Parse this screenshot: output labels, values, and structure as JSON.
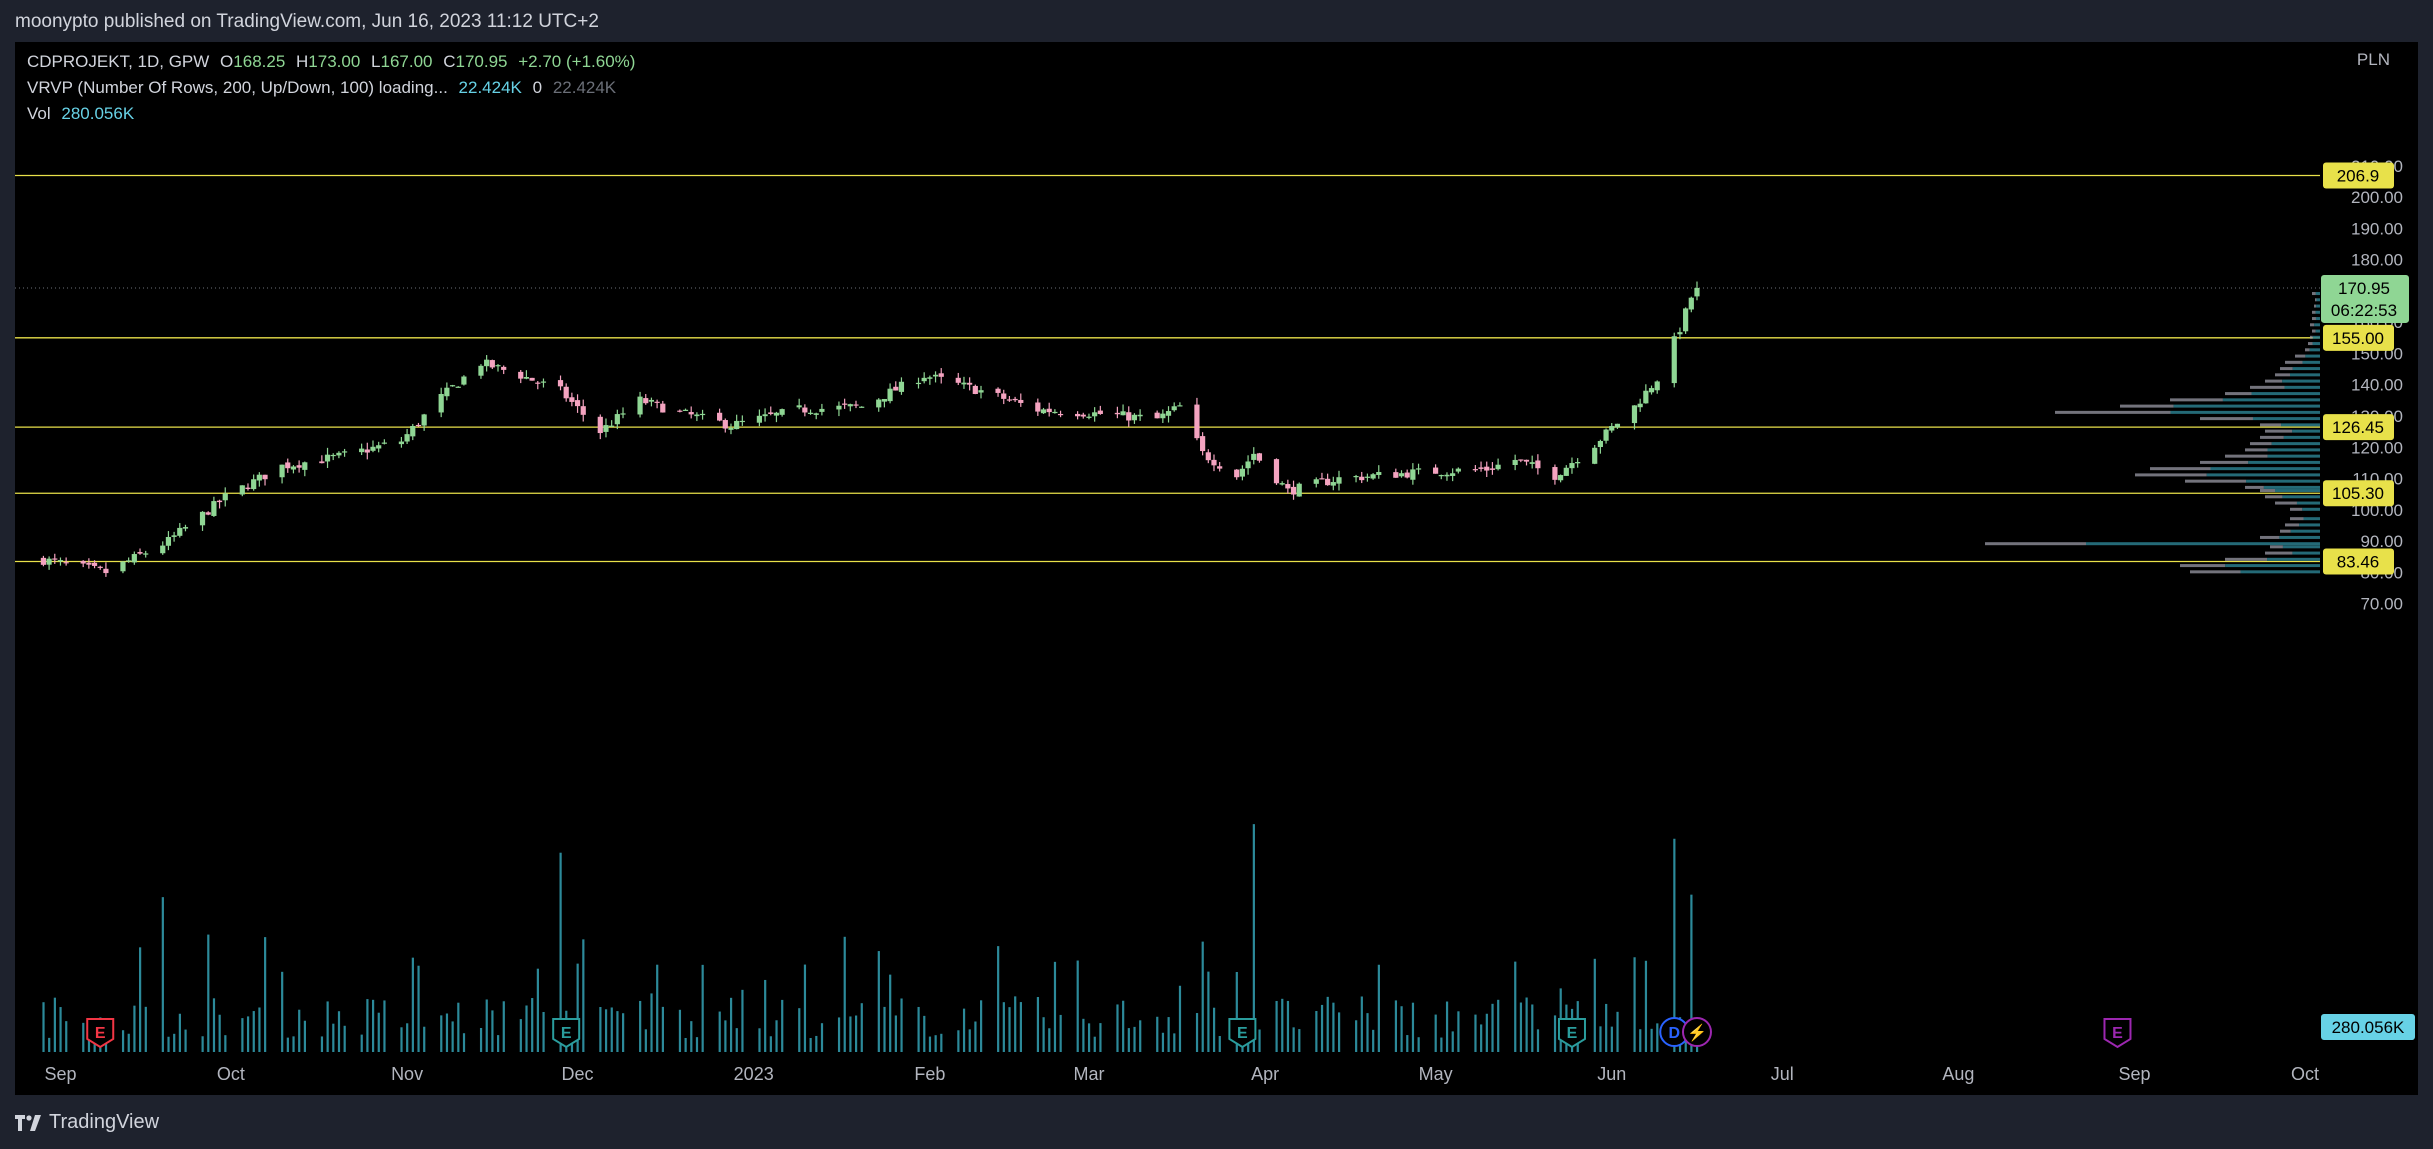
{
  "header": {
    "published_by": "moonypto published on TradingView.com, Jun 16, 2023 11:12 UTC+2"
  },
  "legend": {
    "symbol": "CDPROJEKT, 1D, GPW",
    "open_label": "O",
    "open": "168.25",
    "high_label": "H",
    "high": "173.00",
    "low_label": "L",
    "low": "167.00",
    "close_label": "C",
    "close": "170.95",
    "change": "+2.70 (+1.60%)",
    "vrvp_label": "VRVP (Number Of Rows, 200, Up/Down, 100) loading...",
    "vrvp_up": "22.424K",
    "vrvp_zero": "0",
    "vrvp_down": "22.424K",
    "vol_label": "Vol",
    "vol_value": "280.056K"
  },
  "footer": {
    "brand": "TradingView"
  },
  "colors": {
    "up": "#8fd694",
    "down": "#f4a3c0",
    "level": "#e8e14a",
    "volume": "#2c8a9a",
    "vrvp_up": "#2a7d8c",
    "vrvp_down": "#9a9aa5",
    "background": "#000000",
    "price_badge": "#8fd694",
    "vol_badge": "#67d2e6"
  },
  "chart_data": {
    "type": "candlestick",
    "currency": "PLN",
    "y_axis": {
      "min": 70,
      "max": 210,
      "ticks": [
        70,
        80,
        90,
        100,
        110,
        120,
        130,
        140,
        150,
        160,
        170,
        180,
        190,
        200,
        210
      ]
    },
    "x_axis_labels": [
      "Sep",
      "Oct",
      "Nov",
      "Dec",
      "2023",
      "Feb",
      "Mar",
      "Apr",
      "May",
      "Jun",
      "Jul",
      "Aug",
      "Sep",
      "Oct"
    ],
    "horizontal_levels": [
      206.9,
      155.0,
      126.45,
      105.3,
      83.46
    ],
    "level_labels": [
      "206.9",
      "155.00",
      "126.45",
      "105.30",
      "83.46"
    ],
    "last_price": "170.95",
    "countdown": "06:22:53",
    "price_key_points": [
      {
        "date": "2022-08-29",
        "close": 84
      },
      {
        "date": "2022-09-09",
        "close": 80
      },
      {
        "date": "2022-09-20",
        "close": 90
      },
      {
        "date": "2022-09-30",
        "close": 104
      },
      {
        "date": "2022-10-10",
        "close": 114
      },
      {
        "date": "2022-10-20",
        "close": 117
      },
      {
        "date": "2022-10-31",
        "close": 122
      },
      {
        "date": "2022-11-07",
        "close": 136
      },
      {
        "date": "2022-11-14",
        "close": 147
      },
      {
        "date": "2022-11-21",
        "close": 143
      },
      {
        "date": "2022-11-28",
        "close": 138
      },
      {
        "date": "2022-12-05",
        "close": 125
      },
      {
        "date": "2022-12-12",
        "close": 135
      },
      {
        "date": "2022-12-19",
        "close": 131
      },
      {
        "date": "2022-12-28",
        "close": 127
      },
      {
        "date": "2023-01-09",
        "close": 132
      },
      {
        "date": "2023-01-20",
        "close": 133
      },
      {
        "date": "2023-01-31",
        "close": 143
      },
      {
        "date": "2023-02-10",
        "close": 138
      },
      {
        "date": "2023-02-20",
        "close": 132
      },
      {
        "date": "2023-03-01",
        "close": 131
      },
      {
        "date": "2023-03-13",
        "close": 129
      },
      {
        "date": "2023-03-17",
        "close": 133
      },
      {
        "date": "2023-03-21",
        "close": 118
      },
      {
        "date": "2023-03-27",
        "close": 111
      },
      {
        "date": "2023-03-30",
        "close": 118
      },
      {
        "date": "2023-04-05",
        "close": 106
      },
      {
        "date": "2023-04-14",
        "close": 110
      },
      {
        "date": "2023-04-28",
        "close": 112
      },
      {
        "date": "2023-05-10",
        "close": 113
      },
      {
        "date": "2023-05-15",
        "close": 116
      },
      {
        "date": "2023-05-22",
        "close": 111
      },
      {
        "date": "2023-05-29",
        "close": 121
      },
      {
        "date": "2023-06-05",
        "close": 133
      },
      {
        "date": "2023-06-09",
        "close": 142
      },
      {
        "date": "2023-06-13",
        "close": 158
      },
      {
        "date": "2023-06-15",
        "close": 168
      },
      {
        "date": "2023-06-16",
        "close": 170.95
      }
    ],
    "volume": {
      "last": "280.056K",
      "notable_spikes_dates": [
        "2022-09-19",
        "2022-10-07",
        "2022-11-28",
        "2023-03-21",
        "2023-03-30",
        "2023-06-12",
        "2023-06-15"
      ]
    },
    "event_markers": [
      {
        "label": "E",
        "date": "2022-09-08",
        "color": "#f23645"
      },
      {
        "label": "E",
        "date": "2022-11-29",
        "color": "#2a9d9d"
      },
      {
        "label": "E",
        "date": "2023-03-28",
        "color": "#2a9d9d"
      },
      {
        "label": "E",
        "date": "2023-05-25",
        "color": "#2a9d9d"
      },
      {
        "label": "D",
        "date": "2023-06-12",
        "color": "#2962ff"
      },
      {
        "label": "⚡",
        "date": "2023-06-16",
        "color": "#9c27b0"
      },
      {
        "label": "E",
        "date": "2023-08-29",
        "color": "#9c27b0"
      }
    ]
  }
}
